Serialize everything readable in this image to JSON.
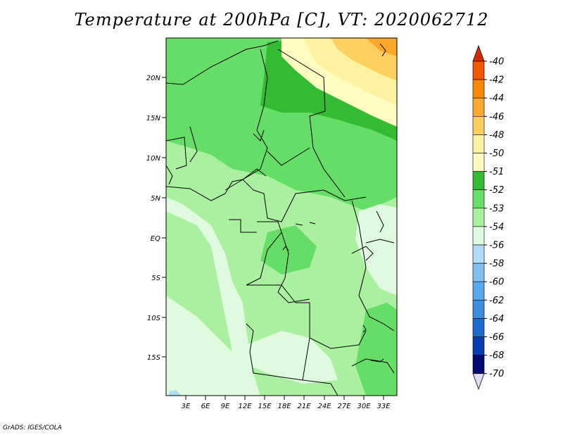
{
  "title": "Temperature at 200hPa [C], VT: 2020062712",
  "credit": "GrADS: IGES/COLA",
  "map": {
    "lat_labels": [
      "20N",
      "15N",
      "10N",
      "5N",
      "EQ",
      "5S",
      "10S",
      "15S"
    ],
    "lon_labels": [
      "3E",
      "6E",
      "9E",
      "12E",
      "15E",
      "18E",
      "21E",
      "24E",
      "27E",
      "30E",
      "33E"
    ]
  },
  "colorbar": {
    "labels": [
      "-40",
      "-42",
      "-44",
      "-46",
      "-48",
      "-50",
      "-51",
      "-52",
      "-53",
      "-54",
      "-56",
      "-58",
      "-60",
      "-62",
      "-64",
      "-66",
      "-68",
      "-70"
    ],
    "colors": [
      "#d82a00",
      "#ee5a00",
      "#f7880b",
      "#f9a82c",
      "#fbd060",
      "#fdf2a0",
      "#fffcc2",
      "#33bb33",
      "#66dd66",
      "#aaf0a0",
      "#e0fae0",
      "#b0dcf8",
      "#80c0f0",
      "#5aa8ea",
      "#3e8ee0",
      "#1e6cd0",
      "#0a3eb0",
      "#050a70"
    ],
    "extend_low_color": "#e0dcf8"
  }
}
